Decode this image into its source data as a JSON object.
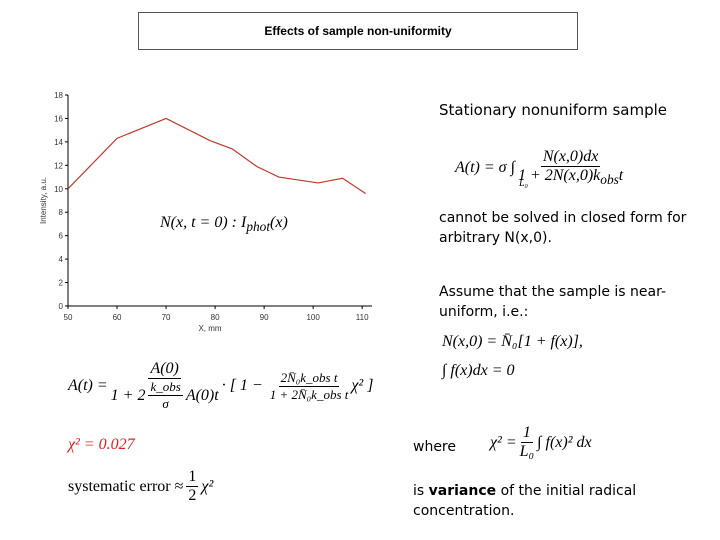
{
  "title": "Effects of sample non-uniformity",
  "chart_data": {
    "type": "line",
    "ylabel": "Intensity, a.u.",
    "xlabel": "X, mm",
    "annotation": "N(x, t = 0) : I",
    "annotation_sub": "phot",
    "annotation_end": "(x)",
    "x": [
      50,
      60,
      70,
      79,
      83.5,
      88.5,
      93,
      101,
      106,
      110.7
    ],
    "series": [
      {
        "color": "#c0392b",
        "values": [
          10.0,
          14.3,
          16.0,
          14.1,
          13.4,
          11.9,
          11.0,
          10.5,
          10.9,
          9.6
        ]
      }
    ],
    "xlim": [
      50,
      112
    ],
    "ylim": [
      0,
      18
    ],
    "xticks": [
      50,
      60,
      70,
      80,
      90,
      100,
      110
    ],
    "yticks": [
      0,
      2,
      4,
      6,
      8,
      10,
      12,
      14,
      16,
      18
    ]
  },
  "right": {
    "heading": "Stationary nonuniform sample",
    "eq1_lhs": "A(t) = σ ∫",
    "eq1_num": "N(x,0)dx",
    "eq1_den": "1 + 2N(x,0)k",
    "eq1_den_sub": "obs",
    "eq1_den_end": "t",
    "eq1_limit": "L₀",
    "closed_form": "cannot be solved in closed form for arbitrary N(x,0).",
    "assume": "Assume that the sample is near-uniform, i.e.:",
    "eq2": "N(x,0) = N̄₀[1 + f(x)],",
    "eq3": "∫ f(x)dx = 0",
    "where": "where",
    "eq4_lhs": "χ² =",
    "eq4_num": "1",
    "eq4_den": "L₀",
    "eq4_rhs": "∫ f(x)² dx",
    "concl_is": "is",
    "concl_bold": "variance",
    "concl_rest": "of the initial radical concentration."
  },
  "left": {
    "eq5_lhs": "A(t) =",
    "eq5_num": "A(0)",
    "eq5_den1": "1 + 2",
    "eq5_kfrac_num": "k_obs",
    "eq5_kfrac_den": "σ",
    "eq5_den2": "A(0)t",
    "eq5_bracket": "· [ 1 − ",
    "eq5_bnum": "2N̄₀k_obs t",
    "eq5_bden": "1 + 2N̄₀k_obs t",
    "eq5_chi": "χ² ]",
    "chi_value": "χ² = 0.027",
    "syserr": "systematic error ≈",
    "half_num": "1",
    "half_den": "2",
    "half_chi": "χ²"
  }
}
